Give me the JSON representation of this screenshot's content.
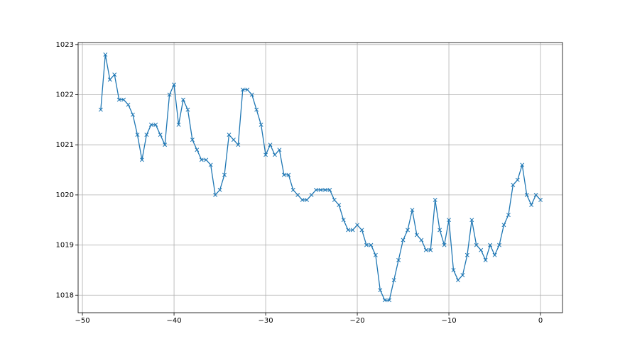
{
  "chart_data": {
    "type": "line",
    "marker": "x",
    "color": "#1f77b4",
    "grid": true,
    "x": [
      -48,
      -47.5,
      -47,
      -46.5,
      -46,
      -45.5,
      -45,
      -44.5,
      -44,
      -43.5,
      -43,
      -42.5,
      -42,
      -41.5,
      -41,
      -40.5,
      -40,
      -39.5,
      -39,
      -38.5,
      -38,
      -37.5,
      -37,
      -36.5,
      -36,
      -35.5,
      -35,
      -34.5,
      -34,
      -33.5,
      -33,
      -32.5,
      -32,
      -31.5,
      -31,
      -30.5,
      -30,
      -29.5,
      -29,
      -28.5,
      -28,
      -27.5,
      -27,
      -26.5,
      -26,
      -25.5,
      -25,
      -24.5,
      -24,
      -23.5,
      -23,
      -22.5,
      -22,
      -21.5,
      -21,
      -20.5,
      -20,
      -19.5,
      -19,
      -18.5,
      -18,
      -17.5,
      -17,
      -16.5,
      -16,
      -15.5,
      -15,
      -14.5,
      -14,
      -13.5,
      -13,
      -12.5,
      -12,
      -11.5,
      -11,
      -10.5,
      -10,
      -9.5,
      -9,
      -8.5,
      -8,
      -7.5,
      -7,
      -6.5,
      -6,
      -5.5,
      -5,
      -4.5,
      -4,
      -3.5,
      -3,
      -2.5,
      -2,
      -1.5,
      -1,
      -0.5,
      0
    ],
    "values": [
      1021.7,
      1022.8,
      1022.3,
      1022.4,
      1021.9,
      1021.9,
      1021.8,
      1021.6,
      1021.2,
      1020.7,
      1021.2,
      1021.4,
      1021.4,
      1021.2,
      1021.0,
      1022.0,
      1022.2,
      1021.4,
      1021.9,
      1021.7,
      1021.1,
      1020.9,
      1020.7,
      1020.7,
      1020.6,
      1020.0,
      1020.1,
      1020.4,
      1021.2,
      1021.1,
      1021.0,
      1022.1,
      1022.1,
      1022.0,
      1021.7,
      1021.4,
      1020.8,
      1021.0,
      1020.8,
      1020.9,
      1020.4,
      1020.4,
      1020.1,
      1020.0,
      1019.9,
      1019.9,
      1020.0,
      1020.1,
      1020.1,
      1020.1,
      1020.1,
      1019.9,
      1019.8,
      1019.5,
      1019.3,
      1019.3,
      1019.4,
      1019.3,
      1019.0,
      1019.0,
      1018.8,
      1018.1,
      1017.9,
      1017.9,
      1018.3,
      1018.7,
      1019.1,
      1019.3,
      1019.7,
      1019.2,
      1019.1,
      1018.9,
      1018.9,
      1019.9,
      1019.3,
      1019.0,
      1019.5,
      1018.5,
      1018.3,
      1018.4,
      1018.8,
      1019.5,
      1019.0,
      1018.9,
      1018.7,
      1019.0,
      1018.8,
      1019.0,
      1019.4,
      1019.6,
      1020.2,
      1020.3,
      1020.6,
      1020.0,
      1019.8,
      1020.0,
      1019.9
    ],
    "xlim": [
      -50.47,
      2.4
    ],
    "xticks": [
      {
        "value": -50,
        "label": "−50"
      },
      {
        "value": -40,
        "label": "−40"
      },
      {
        "value": -30,
        "label": "−30"
      },
      {
        "value": -20,
        "label": "−20"
      },
      {
        "value": -10,
        "label": "−10"
      },
      0
    ],
    "ylim": [
      1017.65,
      1023.04
    ],
    "yticks": [
      1018,
      1019,
      1020,
      1021,
      1022,
      1023
    ]
  }
}
